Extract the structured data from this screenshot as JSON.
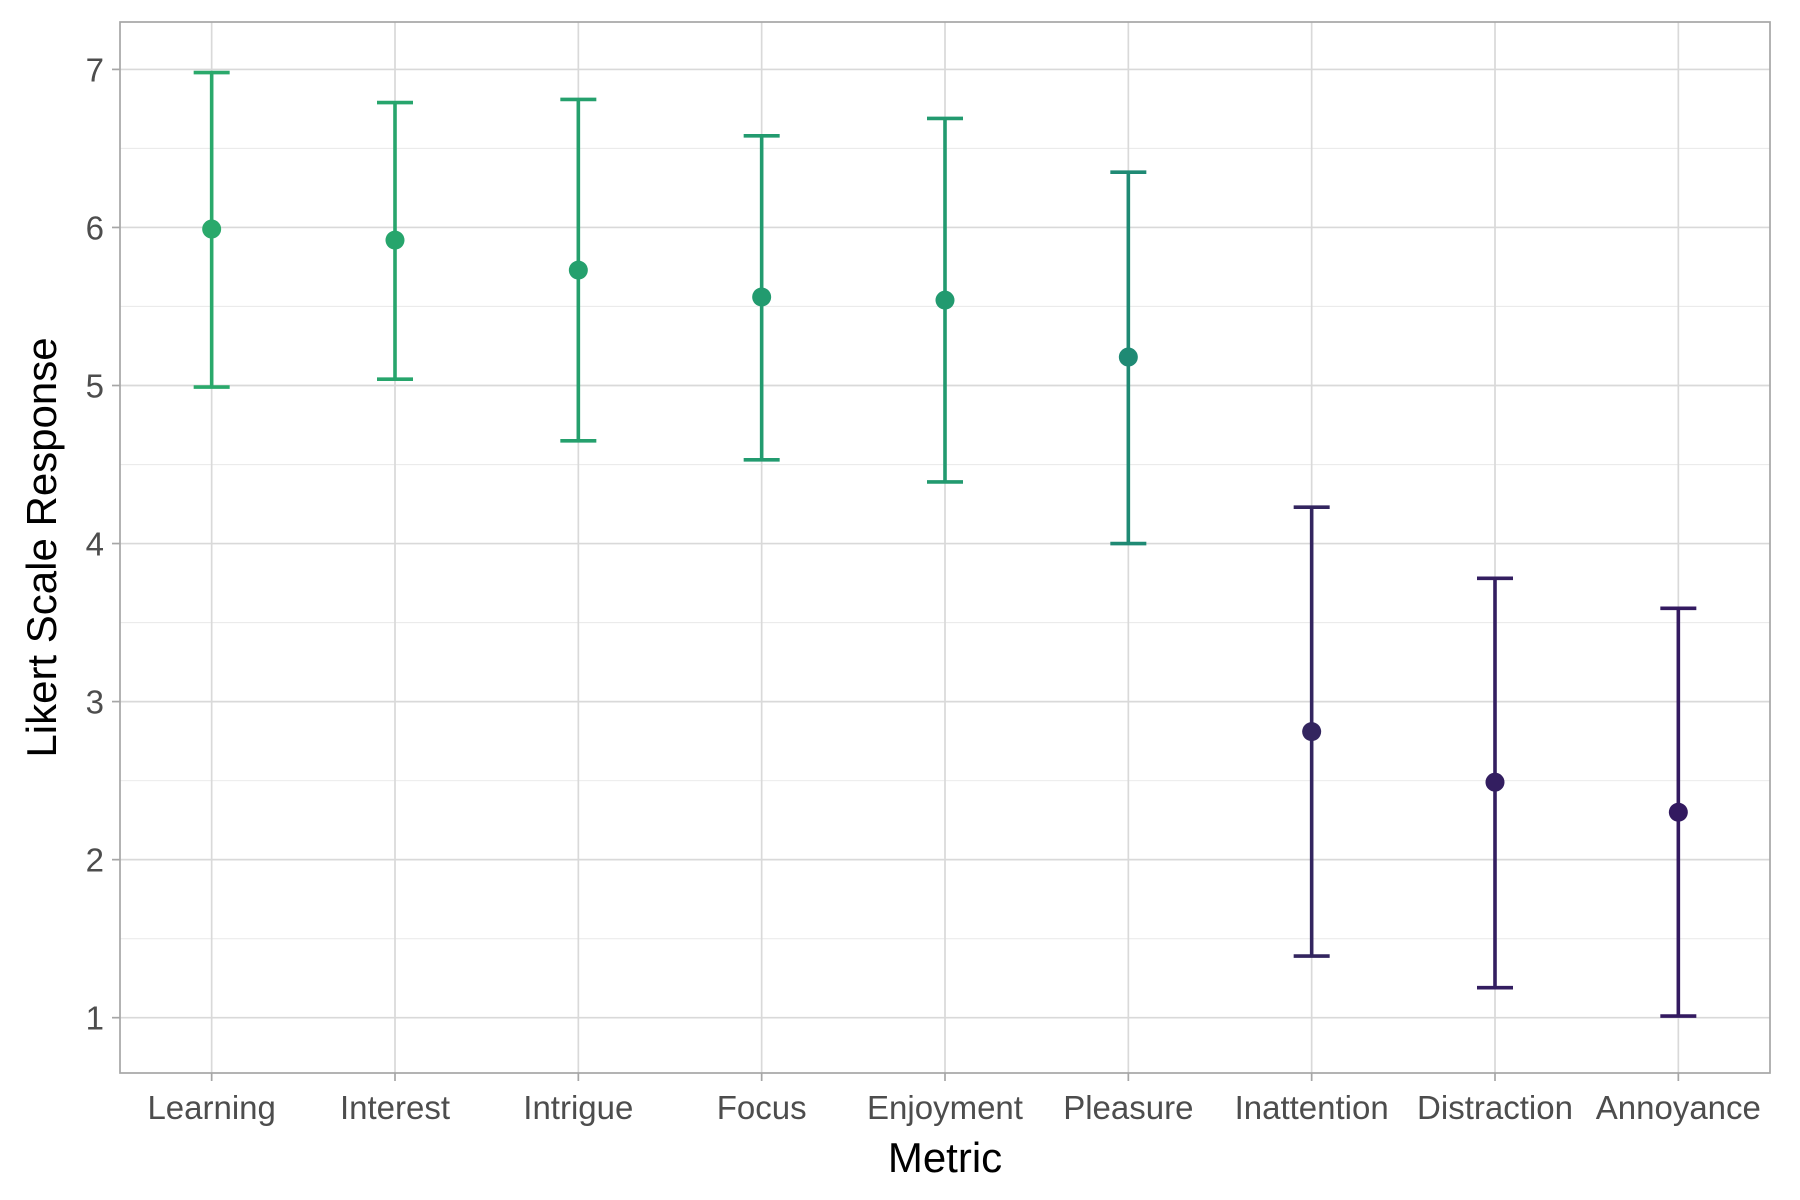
{
  "chart_data": {
    "type": "scatter",
    "subtype": "point-with-error-bars",
    "title": "",
    "xlabel": "Metric",
    "ylabel": "Likert Scale Response",
    "ylim": [
      0.65,
      7.3
    ],
    "yticks": [
      1,
      2,
      3,
      4,
      5,
      6,
      7
    ],
    "grid": true,
    "legend": "none",
    "categories": [
      "Learning",
      "Interest",
      "Intrigue",
      "Focus",
      "Enjoyment",
      "Pleasure",
      "Inattention",
      "Distraction",
      "Annoyance"
    ],
    "points": [
      {
        "category": "Learning",
        "mean": 5.99,
        "lower": 4.99,
        "upper": 6.98,
        "color": "#2aa96b"
      },
      {
        "category": "Interest",
        "mean": 5.92,
        "lower": 5.04,
        "upper": 6.79,
        "color": "#27a56c"
      },
      {
        "category": "Intrigue",
        "mean": 5.73,
        "lower": 4.65,
        "upper": 6.81,
        "color": "#25a06d"
      },
      {
        "category": "Focus",
        "mean": 5.56,
        "lower": 4.53,
        "upper": 6.58,
        "color": "#229b6f"
      },
      {
        "category": "Enjoyment",
        "mean": 5.54,
        "lower": 4.39,
        "upper": 6.69,
        "color": "#229a6f"
      },
      {
        "category": "Pleasure",
        "mean": 5.18,
        "lower": 4.0,
        "upper": 6.35,
        "color": "#1f8a74"
      },
      {
        "category": "Inattention",
        "mean": 2.81,
        "lower": 1.39,
        "upper": 4.23,
        "color": "#33255f"
      },
      {
        "category": "Distraction",
        "mean": 2.49,
        "lower": 1.19,
        "upper": 3.78,
        "color": "#331e60"
      },
      {
        "category": "Annoyance",
        "mean": 2.3,
        "lower": 1.01,
        "upper": 3.59,
        "color": "#331a60"
      }
    ]
  }
}
